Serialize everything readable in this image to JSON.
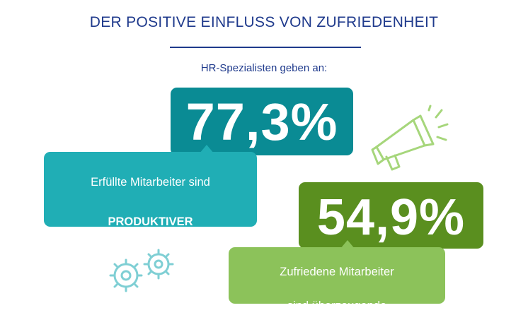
{
  "header": {
    "title": "DER POSITIVE EINFLUSS VON ZUFRIEDENHEIT",
    "subtitle": "HR-Spezialisten geben an:"
  },
  "stats": [
    {
      "value": "77,3%",
      "caption_line1": "Erfüllte Mitarbeiter sind",
      "caption_line2": "PRODUKTIVER"
    },
    {
      "value": "54,9%",
      "caption_line1": "Zufriedene Mitarbeiter",
      "caption_line2": "sind überzeugende"
    }
  ],
  "icons": {
    "megaphone": "megaphone-icon",
    "gears": "gears-icon"
  },
  "colors": {
    "title": "#1f3a8c",
    "teal_dark": "#0a8b94",
    "teal_light": "#20aeb5",
    "green_dark": "#5a8f1f",
    "green_light": "#8cc25a",
    "megaphone": "#a6d67b",
    "gears": "#7fcfd4"
  }
}
